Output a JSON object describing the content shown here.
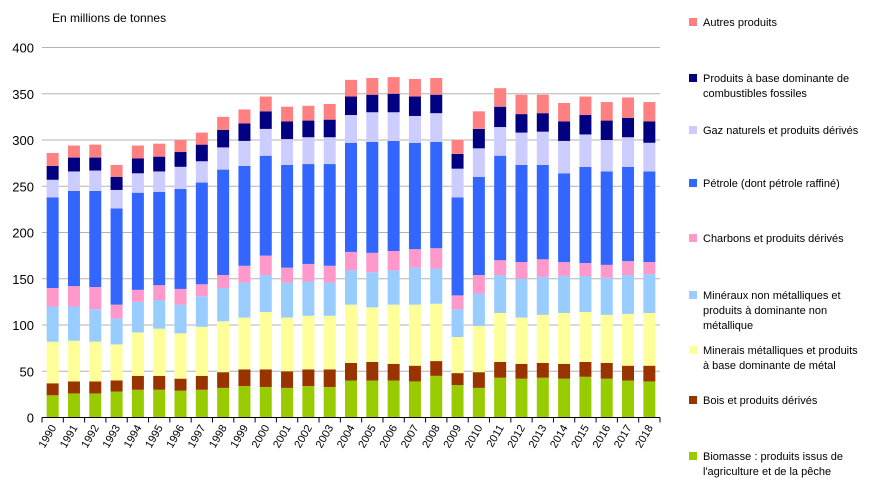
{
  "chart_data": {
    "type": "bar",
    "stacked": true,
    "title": "",
    "ylabel": "En millions de tonnes",
    "xlabel": "",
    "ylim": [
      0,
      400
    ],
    "yticks": [
      "0",
      "50",
      "100",
      "150",
      "200",
      "250",
      "300",
      "350",
      "400"
    ],
    "grid": true,
    "legend_position": "right",
    "categories": [
      "1990",
      "1991",
      "1992",
      "1993",
      "1994",
      "1995",
      "1996",
      "1997",
      "1998",
      "1999",
      "2000",
      "2001",
      "2002",
      "2003",
      "2004",
      "2005",
      "2006",
      "2007",
      "2008",
      "2009",
      "2010",
      "2011",
      "2012",
      "2013",
      "2014",
      "2015",
      "2016",
      "2017",
      "2018"
    ],
    "series": [
      {
        "name": "Biomasse : produits issus de l'agriculture et de la pêche",
        "color": "#99cc00",
        "values": [
          24,
          26,
          26,
          28,
          30,
          30,
          29,
          30,
          32,
          34,
          33,
          32,
          34,
          33,
          40,
          40,
          40,
          39,
          45,
          35,
          32,
          43,
          42,
          43,
          42,
          44,
          42,
          40,
          39
        ]
      },
      {
        "name": "Bois et produits dérivés",
        "color": "#993300",
        "values": [
          13,
          13,
          13,
          12,
          15,
          15,
          13,
          15,
          17,
          18,
          19,
          18,
          18,
          19,
          19,
          20,
          18,
          17,
          16,
          13,
          17,
          17,
          16,
          16,
          16,
          16,
          17,
          16,
          17
        ]
      },
      {
        "name": "Minerais métalliques et produits à base dominante de métal",
        "color": "#ffff99",
        "values": [
          45,
          44,
          43,
          39,
          47,
          51,
          49,
          53,
          55,
          56,
          62,
          58,
          58,
          58,
          63,
          59,
          64,
          66,
          62,
          39,
          50,
          53,
          50,
          52,
          55,
          54,
          52,
          56,
          57
        ]
      },
      {
        "name": "Minéraux non métalliques et produits à dominante non métallique",
        "color": "#99ccff",
        "values": [
          38,
          37,
          35,
          28,
          33,
          31,
          31,
          33,
          36,
          38,
          40,
          38,
          37,
          36,
          37,
          38,
          37,
          40,
          38,
          30,
          35,
          41,
          42,
          41,
          40,
          39,
          40,
          42,
          42
        ]
      },
      {
        "name": "Charbons et produits dérivés",
        "color": "#ff99cc",
        "values": [
          20,
          22,
          24,
          15,
          13,
          16,
          17,
          13,
          14,
          18,
          21,
          16,
          19,
          18,
          20,
          21,
          21,
          20,
          22,
          15,
          20,
          16,
          18,
          19,
          15,
          14,
          14,
          15,
          13
        ]
      },
      {
        "name": "Pétrole (dont pétrole raffiné)",
        "color": "#3366ff",
        "values": [
          98,
          103,
          104,
          104,
          105,
          101,
          108,
          110,
          114,
          108,
          108,
          111,
          108,
          110,
          118,
          120,
          119,
          115,
          115,
          106,
          106,
          113,
          105,
          102,
          96,
          104,
          101,
          102,
          98
        ]
      },
      {
        "name": "Gaz naturels et produits dérivés",
        "color": "#ccccff",
        "values": [
          19,
          21,
          22,
          20,
          21,
          22,
          24,
          23,
          24,
          27,
          29,
          28,
          29,
          29,
          30,
          32,
          31,
          29,
          31,
          31,
          31,
          31,
          35,
          36,
          35,
          35,
          34,
          32,
          31
        ]
      },
      {
        "name": "Produits à base dominante de combustibles fossiles",
        "color": "#000080",
        "values": [
          15,
          15,
          14,
          14,
          16,
          16,
          16,
          18,
          19,
          19,
          19,
          19,
          18,
          19,
          20,
          19,
          20,
          21,
          20,
          16,
          21,
          22,
          20,
          20,
          21,
          21,
          21,
          21,
          23
        ]
      },
      {
        "name": "Autres produits",
        "color": "#ff8080",
        "values": [
          14,
          13,
          14,
          13,
          14,
          14,
          13,
          13,
          14,
          15,
          16,
          16,
          16,
          17,
          18,
          18,
          18,
          19,
          18,
          15,
          19,
          20,
          21,
          20,
          20,
          20,
          20,
          22,
          21
        ]
      }
    ]
  }
}
